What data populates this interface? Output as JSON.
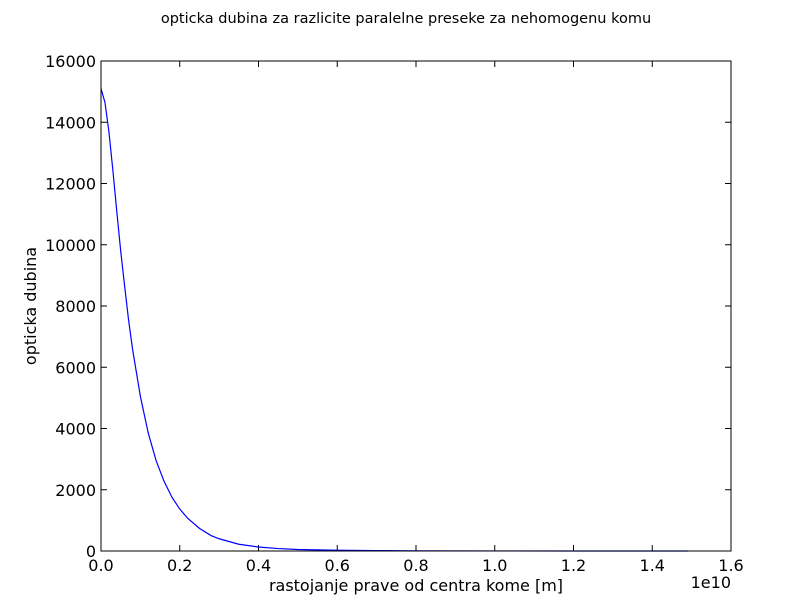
{
  "chart_data": {
    "type": "line",
    "title": "opticka dubina za razlicite paralelne preseke za nehomogenu komu",
    "xlabel": "rastojanje prave od centra kome [m]",
    "ylabel": "opticka dubina",
    "x_offset_label": "1e10",
    "xlim": [
      0.0,
      1.6
    ],
    "ylim": [
      0,
      16000
    ],
    "x_ticks": [
      0.0,
      0.2,
      0.4,
      0.6,
      0.8,
      1.0,
      1.2,
      1.4,
      1.6
    ],
    "x_tick_labels": [
      "0.0",
      "0.2",
      "0.4",
      "0.6",
      "0.8",
      "1.0",
      "1.2",
      "1.4",
      "1.6"
    ],
    "y_ticks": [
      0,
      2000,
      4000,
      6000,
      8000,
      10000,
      12000,
      14000,
      16000
    ],
    "y_tick_labels": [
      "0",
      "2000",
      "4000",
      "6000",
      "8000",
      "10000",
      "12000",
      "14000",
      "16000"
    ],
    "grid": false,
    "series": [
      {
        "color": "#0000ff",
        "x": [
          0.0,
          0.01,
          0.02,
          0.03,
          0.04,
          0.05,
          0.06,
          0.07,
          0.08,
          0.1,
          0.12,
          0.14,
          0.16,
          0.18,
          0.2,
          0.22,
          0.25,
          0.28,
          0.3,
          0.35,
          0.4,
          0.45,
          0.5,
          0.6,
          0.7,
          0.8,
          1.0,
          1.2,
          1.49
        ],
        "y": [
          15100,
          14650,
          13700,
          12450,
          11100,
          9800,
          8650,
          7550,
          6600,
          5050,
          3850,
          2950,
          2280,
          1760,
          1370,
          1070,
          740,
          500,
          400,
          220,
          130,
          80,
          50,
          25,
          12,
          6,
          2,
          1,
          0
        ]
      }
    ]
  }
}
